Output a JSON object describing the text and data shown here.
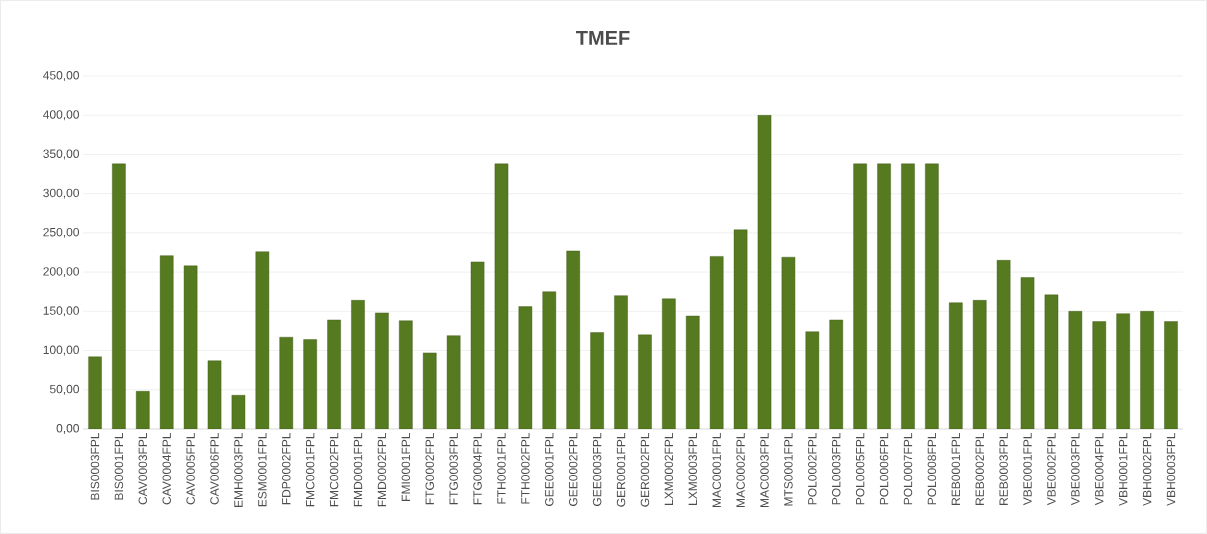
{
  "chart_data": {
    "type": "bar",
    "title": "TMEF",
    "categories": [
      "BIS0003FPL",
      "BIS0001FPL",
      "CAV0003FPL",
      "CAV0004FPL",
      "CAV0005FPL",
      "CAV0006FPL",
      "EMH0003FPL",
      "ESM0001FPL",
      "FDP0002FPL",
      "FMC0001FPL",
      "FMC0002FPL",
      "FMD0001FPL",
      "FMD0002FPL",
      "FMI0001FPL",
      "FTG0002FPL",
      "FTG0003FPL",
      "FTG0004FPL",
      "FTH0001FPL",
      "FTH0002FPL",
      "GEE0001FPL",
      "GEE0002FPL",
      "GEE0003FPL",
      "GER0001FPL",
      "GER0002FPL",
      "LXM0002FPL",
      "LXM0003FPL",
      "MAC0001FPL",
      "MAC0002FPL",
      "MAC0003FPL",
      "MTS0001FPL",
      "POL0002FPL",
      "POL0003FPL",
      "POL0005FPL",
      "POL0006FPL",
      "POL0007FPL",
      "POL0008FPL",
      "REB0001FPL",
      "REB0002FPL",
      "REB0003FPL",
      "VBE0001FPL",
      "VBE0002FPL",
      "VBE0003FPL",
      "VBE0004FPL",
      "VBH0001FPL",
      "VBH0002FPL",
      "VBH0003FPL"
    ],
    "values": [
      92,
      338,
      48,
      221,
      208,
      87,
      43,
      226,
      117,
      114,
      139,
      164,
      148,
      138,
      97,
      119,
      213,
      338,
      156,
      175,
      227,
      123,
      170,
      120,
      166,
      144,
      220,
      254,
      400,
      219,
      124,
      139,
      338,
      338,
      338,
      338,
      161,
      164,
      215,
      193,
      171,
      150,
      137,
      147,
      150,
      137
    ],
    "color": "#567a1f",
    "ylim": [
      0,
      450
    ],
    "yticks": [
      {
        "value": 0,
        "label": "0,00"
      },
      {
        "value": 50,
        "label": "50,00"
      },
      {
        "value": 100,
        "label": "100,00"
      },
      {
        "value": 150,
        "label": "150,00"
      },
      {
        "value": 200,
        "label": "200,00"
      },
      {
        "value": 250,
        "label": "250,00"
      },
      {
        "value": 300,
        "label": "300,00"
      },
      {
        "value": 350,
        "label": "350,00"
      },
      {
        "value": 400,
        "label": "400,00"
      },
      {
        "value": 450,
        "label": "450,00"
      }
    ],
    "grid": "y"
  }
}
